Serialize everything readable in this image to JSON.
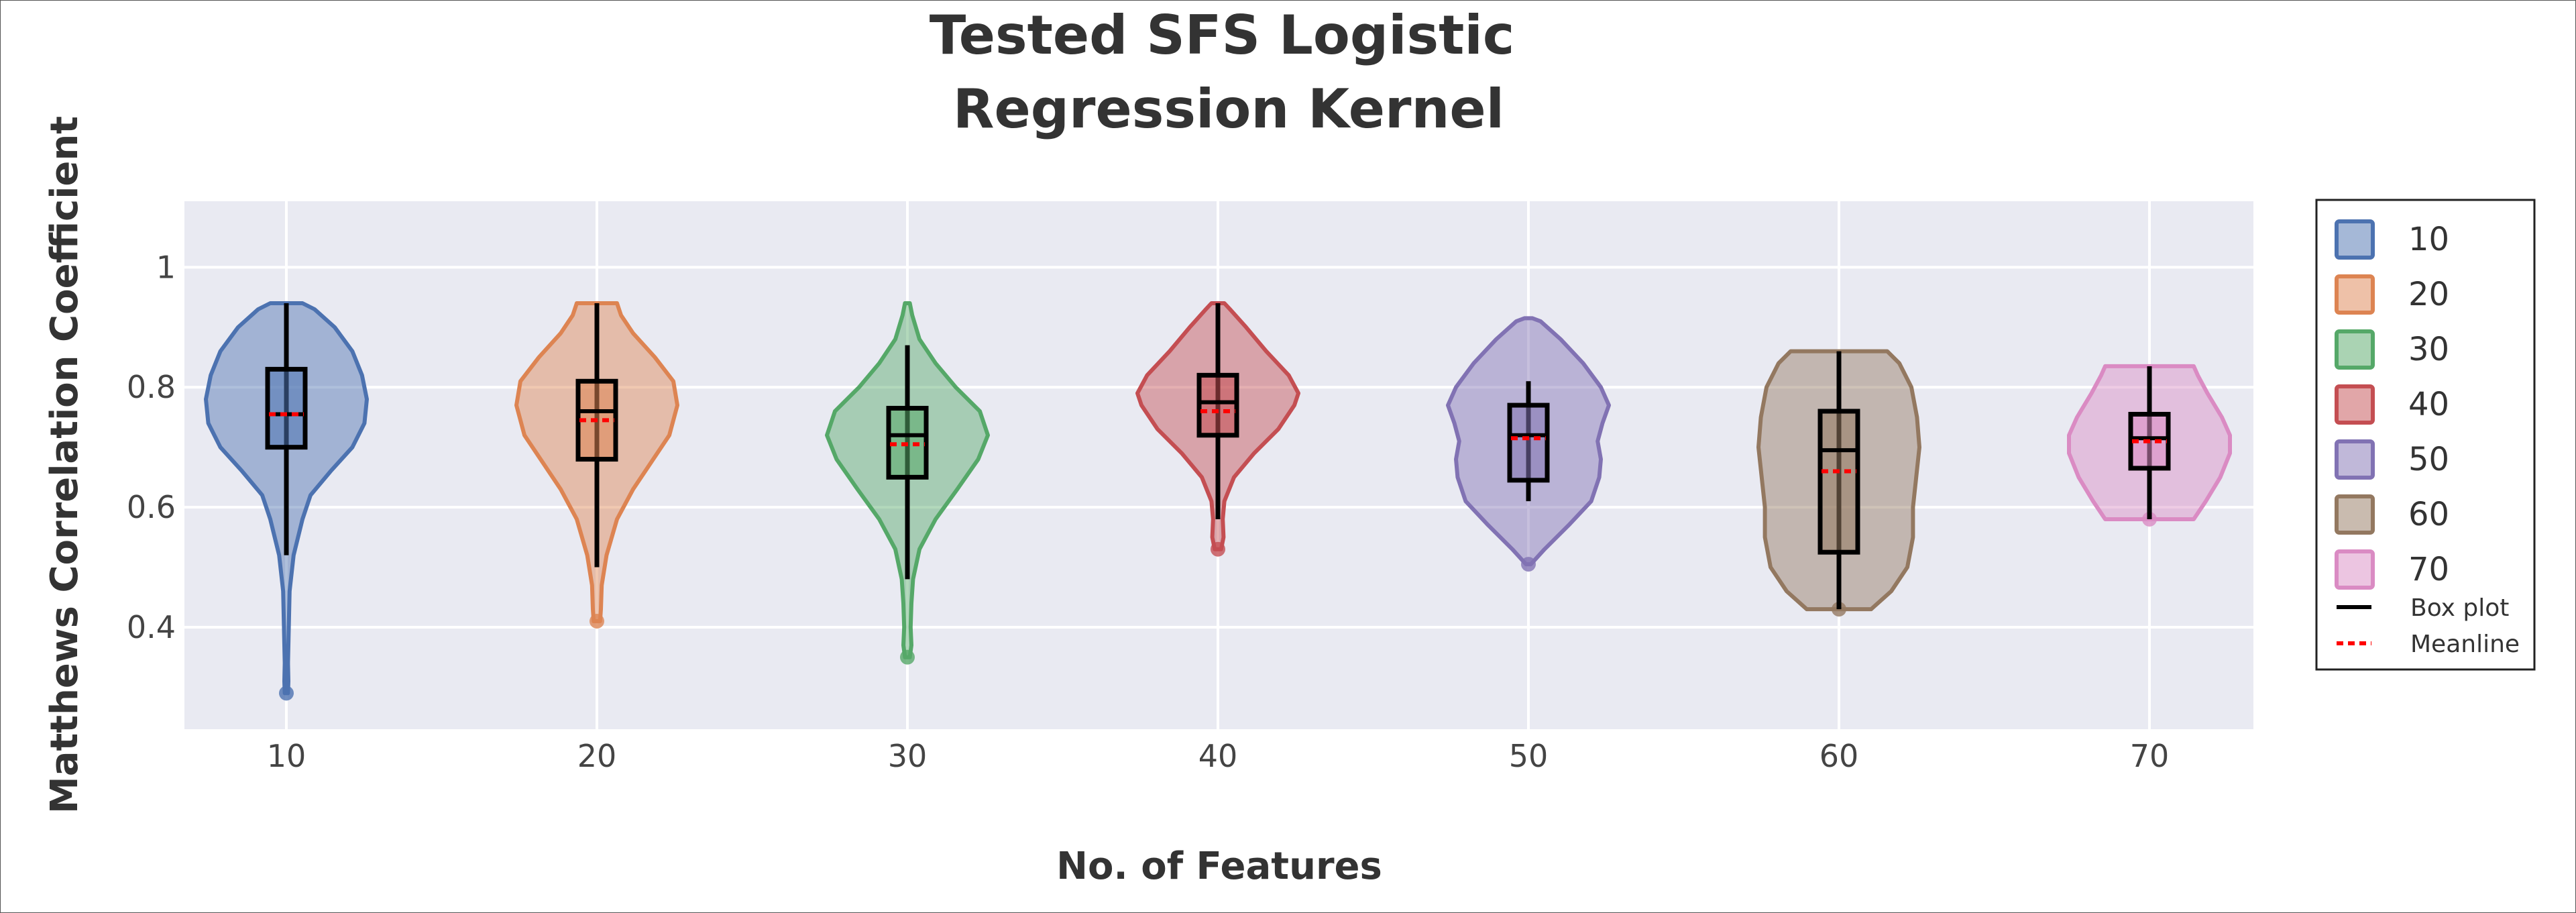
{
  "chart_data": {
    "type": "violin",
    "title_lines": [
      "Tested SFS Logistic",
      "Regression Kernel"
    ],
    "xlabel": "No. of Features",
    "ylabel": "Matthews Correlation Coefficient",
    "categories": [
      "10",
      "20",
      "30",
      "40",
      "50",
      "60",
      "70"
    ],
    "y_ticks": [
      "0.4",
      "0.6",
      "0.8",
      "1"
    ],
    "y_tick_values": [
      0.4,
      0.6,
      0.8,
      1.0
    ],
    "ylim": [
      0.23,
      1.11
    ],
    "grid": true,
    "legend_position": "right",
    "series": [
      {
        "name": "10",
        "color": "#4c72b0",
        "min": 0.29,
        "q1": 0.7,
        "median": 0.755,
        "mean": 0.755,
        "q3": 0.83,
        "max": 0.94,
        "whisker_low": 0.52,
        "whisker_high": 0.94,
        "density": [
          [
            0.29,
            0.02
          ],
          [
            0.31,
            0.025
          ],
          [
            0.34,
            0.02
          ],
          [
            0.4,
            0.03
          ],
          [
            0.46,
            0.04
          ],
          [
            0.52,
            0.09
          ],
          [
            0.58,
            0.2
          ],
          [
            0.62,
            0.3
          ],
          [
            0.66,
            0.55
          ],
          [
            0.7,
            0.82
          ],
          [
            0.74,
            0.97
          ],
          [
            0.78,
            1.0
          ],
          [
            0.82,
            0.94
          ],
          [
            0.86,
            0.82
          ],
          [
            0.9,
            0.6
          ],
          [
            0.93,
            0.35
          ],
          [
            0.94,
            0.2
          ]
        ]
      },
      {
        "name": "20",
        "color": "#dd8452",
        "min": 0.41,
        "q1": 0.68,
        "median": 0.76,
        "mean": 0.745,
        "q3": 0.81,
        "max": 0.94,
        "whisker_low": 0.5,
        "whisker_high": 0.94,
        "density": [
          [
            0.41,
            0.04
          ],
          [
            0.43,
            0.05
          ],
          [
            0.47,
            0.06
          ],
          [
            0.52,
            0.12
          ],
          [
            0.58,
            0.25
          ],
          [
            0.63,
            0.45
          ],
          [
            0.68,
            0.7
          ],
          [
            0.72,
            0.9
          ],
          [
            0.77,
            1.0
          ],
          [
            0.81,
            0.95
          ],
          [
            0.85,
            0.72
          ],
          [
            0.89,
            0.45
          ],
          [
            0.92,
            0.3
          ],
          [
            0.94,
            0.25
          ]
        ]
      },
      {
        "name": "30",
        "color": "#55a868",
        "min": 0.35,
        "q1": 0.65,
        "median": 0.72,
        "mean": 0.705,
        "q3": 0.765,
        "max": 0.94,
        "whisker_low": 0.48,
        "whisker_high": 0.87,
        "density": [
          [
            0.35,
            0.03
          ],
          [
            0.37,
            0.05
          ],
          [
            0.4,
            0.04
          ],
          [
            0.44,
            0.05
          ],
          [
            0.48,
            0.07
          ],
          [
            0.53,
            0.15
          ],
          [
            0.58,
            0.35
          ],
          [
            0.63,
            0.62
          ],
          [
            0.68,
            0.88
          ],
          [
            0.72,
            1.0
          ],
          [
            0.76,
            0.9
          ],
          [
            0.8,
            0.6
          ],
          [
            0.84,
            0.35
          ],
          [
            0.88,
            0.15
          ],
          [
            0.92,
            0.06
          ],
          [
            0.94,
            0.03
          ]
        ]
      },
      {
        "name": "40",
        "color": "#c44e52",
        "min": 0.53,
        "q1": 0.72,
        "median": 0.775,
        "mean": 0.76,
        "q3": 0.82,
        "max": 0.94,
        "whisker_low": 0.58,
        "whisker_high": 0.94,
        "density": [
          [
            0.53,
            0.04
          ],
          [
            0.55,
            0.07
          ],
          [
            0.58,
            0.06
          ],
          [
            0.61,
            0.08
          ],
          [
            0.65,
            0.2
          ],
          [
            0.69,
            0.45
          ],
          [
            0.73,
            0.75
          ],
          [
            0.77,
            0.95
          ],
          [
            0.79,
            1.0
          ],
          [
            0.82,
            0.88
          ],
          [
            0.86,
            0.6
          ],
          [
            0.9,
            0.35
          ],
          [
            0.93,
            0.15
          ],
          [
            0.94,
            0.08
          ]
        ]
      },
      {
        "name": "50",
        "color": "#8172b3",
        "min": 0.505,
        "q1": 0.645,
        "median": 0.72,
        "mean": 0.715,
        "q3": 0.77,
        "max": 0.915,
        "whisker_low": 0.61,
        "whisker_high": 0.81,
        "density": [
          [
            0.505,
            0.03
          ],
          [
            0.53,
            0.2
          ],
          [
            0.57,
            0.5
          ],
          [
            0.61,
            0.78
          ],
          [
            0.65,
            0.88
          ],
          [
            0.68,
            0.9
          ],
          [
            0.71,
            0.86
          ],
          [
            0.74,
            0.92
          ],
          [
            0.77,
            1.0
          ],
          [
            0.8,
            0.9
          ],
          [
            0.84,
            0.68
          ],
          [
            0.88,
            0.4
          ],
          [
            0.91,
            0.15
          ],
          [
            0.915,
            0.05
          ]
        ]
      },
      {
        "name": "60",
        "color": "#937860",
        "min": 0.43,
        "q1": 0.525,
        "median": 0.695,
        "mean": 0.66,
        "q3": 0.76,
        "max": 0.86,
        "whisker_low": 0.43,
        "whisker_high": 0.86,
        "density": [
          [
            0.43,
            0.4
          ],
          [
            0.46,
            0.65
          ],
          [
            0.5,
            0.85
          ],
          [
            0.55,
            0.92
          ],
          [
            0.6,
            0.92
          ],
          [
            0.65,
            0.96
          ],
          [
            0.7,
            1.0
          ],
          [
            0.75,
            0.97
          ],
          [
            0.8,
            0.9
          ],
          [
            0.84,
            0.75
          ],
          [
            0.86,
            0.6
          ]
        ]
      },
      {
        "name": "70",
        "color": "#da8bc3",
        "min": 0.58,
        "q1": 0.665,
        "median": 0.715,
        "mean": 0.71,
        "q3": 0.755,
        "max": 0.835,
        "whisker_low": 0.58,
        "whisker_high": 0.835,
        "density": [
          [
            0.58,
            0.55
          ],
          [
            0.61,
            0.7
          ],
          [
            0.65,
            0.88
          ],
          [
            0.69,
            1.0
          ],
          [
            0.72,
            1.0
          ],
          [
            0.75,
            0.9
          ],
          [
            0.79,
            0.72
          ],
          [
            0.82,
            0.6
          ],
          [
            0.835,
            0.55
          ]
        ]
      }
    ],
    "legend_extra": [
      {
        "label": "Box plot",
        "color": "#000000",
        "style": "solid"
      },
      {
        "label": "Meanline",
        "color": "#ff0000",
        "style": "dashed"
      }
    ]
  }
}
